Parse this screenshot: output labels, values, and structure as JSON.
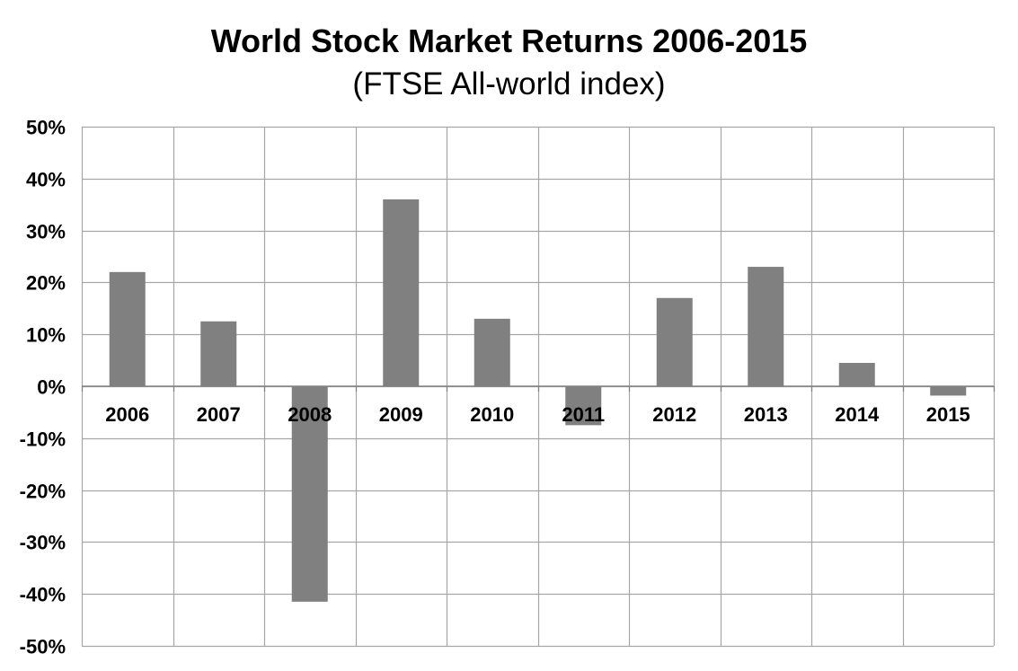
{
  "chart_data": {
    "type": "bar",
    "title": "World Stock Market Returns 2006-2015",
    "subtitle": "(FTSE All-world index)",
    "xlabel": "",
    "ylabel": "",
    "categories": [
      "2006",
      "2007",
      "2008",
      "2009",
      "2010",
      "2011",
      "2012",
      "2013",
      "2014",
      "2015"
    ],
    "values": [
      22,
      12.5,
      -41.5,
      36,
      13,
      -7.5,
      17,
      23,
      4.5,
      -1.8
    ],
    "ylim": [
      -50,
      50
    ],
    "yticks": [
      50,
      40,
      30,
      20,
      10,
      0,
      -10,
      -20,
      -30,
      -40,
      -50
    ],
    "ytick_labels": [
      "50%",
      "40%",
      "30%",
      "20%",
      "10%",
      "0%",
      "-10%",
      "-20%",
      "-30%",
      "-40%",
      "-50%"
    ],
    "grid": true,
    "bar_color": "#808080",
    "grid_color": "#a6a6a6",
    "legend": "none"
  }
}
